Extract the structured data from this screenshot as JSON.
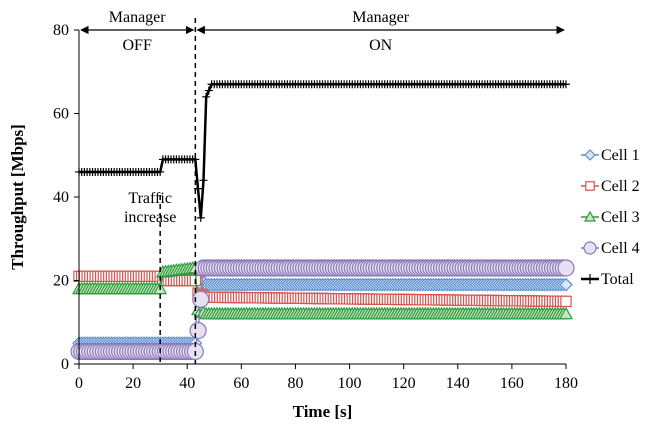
{
  "chart_data": {
    "type": "line",
    "xlabel": "Time [s]",
    "ylabel": "Throughput [Mbps]",
    "xlim": [
      0,
      180
    ],
    "ylim": [
      0,
      80
    ],
    "xticks": [
      0,
      20,
      40,
      60,
      80,
      100,
      120,
      140,
      160,
      180
    ],
    "yticks": [
      0,
      20,
      40,
      60,
      80
    ],
    "grid": false,
    "legend_position": "right",
    "annotations": {
      "manager_off": {
        "line1": "Manager",
        "line2": "OFF",
        "x_range": [
          0,
          43
        ]
      },
      "manager_on": {
        "line1": "Manager",
        "line2": "ON",
        "x_range": [
          43,
          180
        ]
      },
      "traffic": {
        "line1": "Traffic",
        "line2": "increase",
        "x": 30
      },
      "vertical_lines_x": [
        30,
        43
      ]
    },
    "series": [
      {
        "name": "Cell 1",
        "marker": "diamond",
        "color": "#5b8fcf",
        "fill": "#dbe6f4",
        "points": [
          [
            0,
            5
          ],
          [
            30,
            5
          ],
          [
            43,
            5
          ],
          [
            44,
            21
          ],
          [
            47,
            19
          ],
          [
            180,
            19
          ]
        ]
      },
      {
        "name": "Cell 2",
        "marker": "square",
        "color": "#d9534f",
        "fill": "#ffffff",
        "points": [
          [
            0,
            21
          ],
          [
            30,
            21
          ],
          [
            31,
            20
          ],
          [
            43,
            20
          ],
          [
            44,
            17
          ],
          [
            47,
            16
          ],
          [
            180,
            15
          ]
        ]
      },
      {
        "name": "Cell 3",
        "marker": "triangle",
        "color": "#2e9b3f",
        "fill": "#c8e6c0",
        "points": [
          [
            0,
            18
          ],
          [
            30,
            18
          ],
          [
            31,
            22
          ],
          [
            43,
            23
          ],
          [
            44,
            13
          ],
          [
            47,
            12
          ],
          [
            180,
            12
          ]
        ]
      },
      {
        "name": "Cell 4",
        "marker": "circle",
        "color": "#8a79b8",
        "fill": "#e6e0f2",
        "points": [
          [
            0,
            3
          ],
          [
            30,
            3
          ],
          [
            43,
            3
          ],
          [
            44,
            8
          ],
          [
            46,
            23
          ],
          [
            180,
            23
          ]
        ]
      },
      {
        "name": "Total",
        "marker": "plus",
        "color": "#000000",
        "fill": "#000000",
        "points": [
          [
            0,
            46
          ],
          [
            30,
            46
          ],
          [
            31,
            49
          ],
          [
            43,
            49
          ],
          [
            44,
            42
          ],
          [
            45,
            35
          ],
          [
            46,
            44
          ],
          [
            47,
            64
          ],
          [
            49,
            67
          ],
          [
            180,
            67
          ]
        ]
      }
    ]
  }
}
